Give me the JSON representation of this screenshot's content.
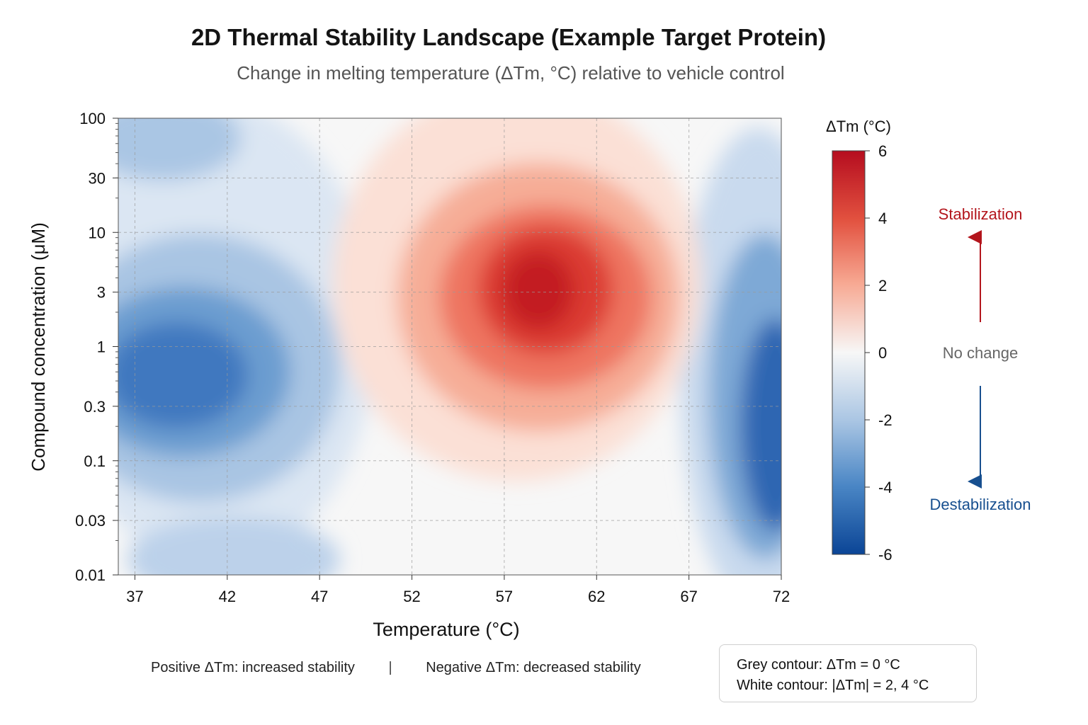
{
  "chart_data": {
    "type": "heatmap",
    "title": "2D Thermal Stability Landscape (Example Target Protein)",
    "subtitle": "Change in melting temperature (ΔTm, °C) relative to vehicle control",
    "xlabel": "Temperature (°C)",
    "ylabel": "Compound concentration (μM)",
    "x_ticks": [
      37,
      42,
      47,
      52,
      57,
      62,
      67,
      72
    ],
    "xlim": [
      36.1,
      72
    ],
    "y_ticks": [
      0.01,
      0.03,
      0.1,
      0.3,
      1,
      3,
      10,
      30,
      100
    ],
    "y_tick_labels": [
      "0.01",
      "0.03",
      "0.1",
      "0.3",
      "1",
      "3",
      "10",
      "30",
      "100"
    ],
    "ylim": [
      0.01,
      100
    ],
    "y_scale": "log",
    "grid": true,
    "colorbar": {
      "label": "ΔTm (°C)",
      "ticks": [
        6,
        4,
        2,
        0,
        -2,
        -4,
        -6
      ],
      "range": [
        -6,
        6
      ],
      "colors": {
        "max": "#b50d1f",
        "mid": "#f7f7f7",
        "min": "#0b4596"
      }
    },
    "features": [
      {
        "label": "stabilization peak",
        "temperature": 58.5,
        "concentration": 3,
        "dTm": 5.6
      },
      {
        "label": "destabilization trough (low T)",
        "temperature": 40,
        "concentration": 0.6,
        "dTm": -4.8
      },
      {
        "label": "destabilization trough (high T)",
        "temperature": 72,
        "concentration": 0.5,
        "dTm": -5.6
      }
    ],
    "annotations": {
      "stabilization": "Stabilization",
      "no_change": "No change",
      "destabilization": "Destabilization",
      "stabilization_color": "#b3151c",
      "no_change_color": "#666666",
      "destabilization_color": "#174f8f"
    }
  },
  "notes": {
    "positive": "Positive ΔTm: increased stability",
    "separator": "|",
    "negative": "Negative ΔTm: decreased stability",
    "grey_contour": "Grey contour: ΔTm = 0 °C",
    "white_contour": "White contour: |ΔTm| = 2, 4 °C"
  }
}
